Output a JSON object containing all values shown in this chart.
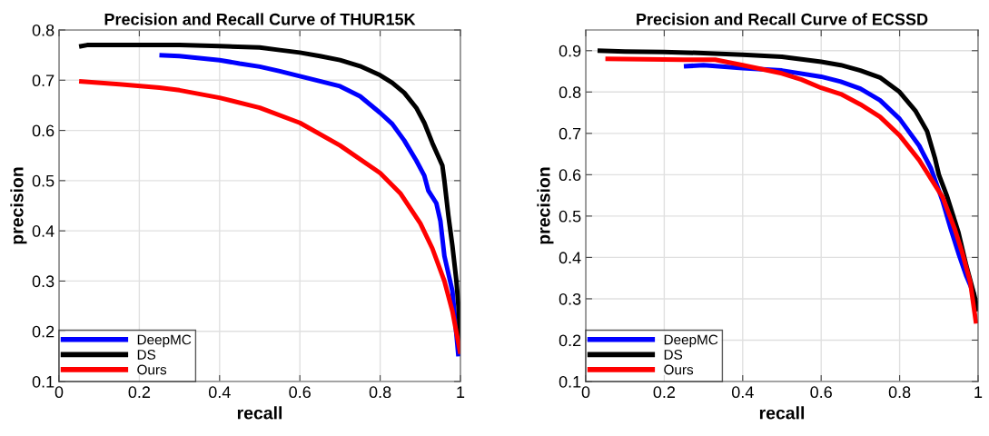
{
  "chart_data": [
    {
      "type": "line",
      "title": "Precision and Recall Curve of THUR15K",
      "xlabel": "recall",
      "ylabel": "precision",
      "xlim": [
        0,
        1
      ],
      "ylim": [
        0.1,
        0.8
      ],
      "xticks": [
        0,
        0.2,
        0.4,
        0.6,
        0.8,
        1
      ],
      "yticks": [
        0.1,
        0.2,
        0.3,
        0.4,
        0.5,
        0.6,
        0.7,
        0.8
      ],
      "grid": true,
      "legend": "bottom left",
      "line_style": "solid",
      "series": [
        {
          "name": "DeepMC",
          "color": "#0000ff",
          "x": [
            0.25,
            0.3,
            0.4,
            0.45,
            0.5,
            0.55,
            0.6,
            0.65,
            0.7,
            0.75,
            0.8,
            0.83,
            0.86,
            0.89,
            0.91,
            0.92,
            0.94,
            0.95,
            0.96,
            0.98,
            0.995
          ],
          "values": [
            0.75,
            0.748,
            0.74,
            0.733,
            0.727,
            0.718,
            0.708,
            0.698,
            0.688,
            0.668,
            0.635,
            0.613,
            0.58,
            0.54,
            0.51,
            0.48,
            0.455,
            0.42,
            0.35,
            0.28,
            0.15
          ]
        },
        {
          "name": "DS",
          "color": "#000000",
          "x": [
            0.05,
            0.07,
            0.15,
            0.3,
            0.4,
            0.5,
            0.55,
            0.6,
            0.65,
            0.7,
            0.75,
            0.8,
            0.83,
            0.86,
            0.89,
            0.91,
            0.93,
            0.955,
            0.96,
            0.97,
            0.98,
            0.99,
            0.995,
            1.0
          ],
          "values": [
            0.767,
            0.77,
            0.77,
            0.77,
            0.768,
            0.765,
            0.76,
            0.755,
            0.748,
            0.74,
            0.728,
            0.71,
            0.695,
            0.675,
            0.645,
            0.615,
            0.575,
            0.53,
            0.5,
            0.43,
            0.37,
            0.3,
            0.25,
            0.18
          ]
        },
        {
          "name": "Ours",
          "color": "#ff0000",
          "x": [
            0.05,
            0.15,
            0.25,
            0.3,
            0.4,
            0.5,
            0.6,
            0.7,
            0.8,
            0.85,
            0.9,
            0.93,
            0.96,
            0.98,
            1.0
          ],
          "values": [
            0.698,
            0.692,
            0.685,
            0.68,
            0.665,
            0.645,
            0.615,
            0.57,
            0.515,
            0.475,
            0.415,
            0.365,
            0.3,
            0.24,
            0.155
          ]
        }
      ]
    },
    {
      "type": "line",
      "title": "Precision and Recall Curve of ECSSD",
      "xlabel": "recall",
      "ylabel": "precision",
      "xlim": [
        0,
        1
      ],
      "ylim": [
        0.1,
        0.95
      ],
      "xticks": [
        0,
        0.2,
        0.4,
        0.6,
        0.8,
        1
      ],
      "yticks": [
        0.1,
        0.2,
        0.3,
        0.4,
        0.5,
        0.6,
        0.7,
        0.8,
        0.9
      ],
      "grid": true,
      "legend": "bottom left",
      "line_style": "solid",
      "series": [
        {
          "name": "DeepMC",
          "color": "#0000ff",
          "x": [
            0.25,
            0.3,
            0.4,
            0.5,
            0.6,
            0.65,
            0.7,
            0.75,
            0.8,
            0.85,
            0.88,
            0.91,
            0.93,
            0.95,
            0.97,
            0.99
          ],
          "values": [
            0.862,
            0.865,
            0.858,
            0.852,
            0.837,
            0.825,
            0.808,
            0.78,
            0.735,
            0.67,
            0.615,
            0.535,
            0.47,
            0.41,
            0.355,
            0.31
          ]
        },
        {
          "name": "DS",
          "color": "#000000",
          "x": [
            0.03,
            0.1,
            0.2,
            0.3,
            0.4,
            0.5,
            0.6,
            0.65,
            0.7,
            0.75,
            0.8,
            0.84,
            0.87,
            0.89,
            0.9,
            0.92,
            0.95,
            0.97,
            0.99,
            1.0
          ],
          "values": [
            0.9,
            0.898,
            0.897,
            0.894,
            0.89,
            0.885,
            0.873,
            0.865,
            0.852,
            0.835,
            0.8,
            0.755,
            0.705,
            0.64,
            0.6,
            0.55,
            0.46,
            0.38,
            0.31,
            0.27
          ]
        },
        {
          "name": "Ours",
          "color": "#ff0000",
          "x": [
            0.05,
            0.15,
            0.25,
            0.33,
            0.4,
            0.5,
            0.55,
            0.6,
            0.65,
            0.7,
            0.75,
            0.8,
            0.85,
            0.88,
            0.91,
            0.94,
            0.96,
            0.98,
            0.995
          ],
          "values": [
            0.88,
            0.879,
            0.878,
            0.878,
            0.865,
            0.845,
            0.83,
            0.81,
            0.795,
            0.77,
            0.74,
            0.695,
            0.635,
            0.59,
            0.545,
            0.47,
            0.41,
            0.34,
            0.24
          ]
        }
      ]
    }
  ]
}
